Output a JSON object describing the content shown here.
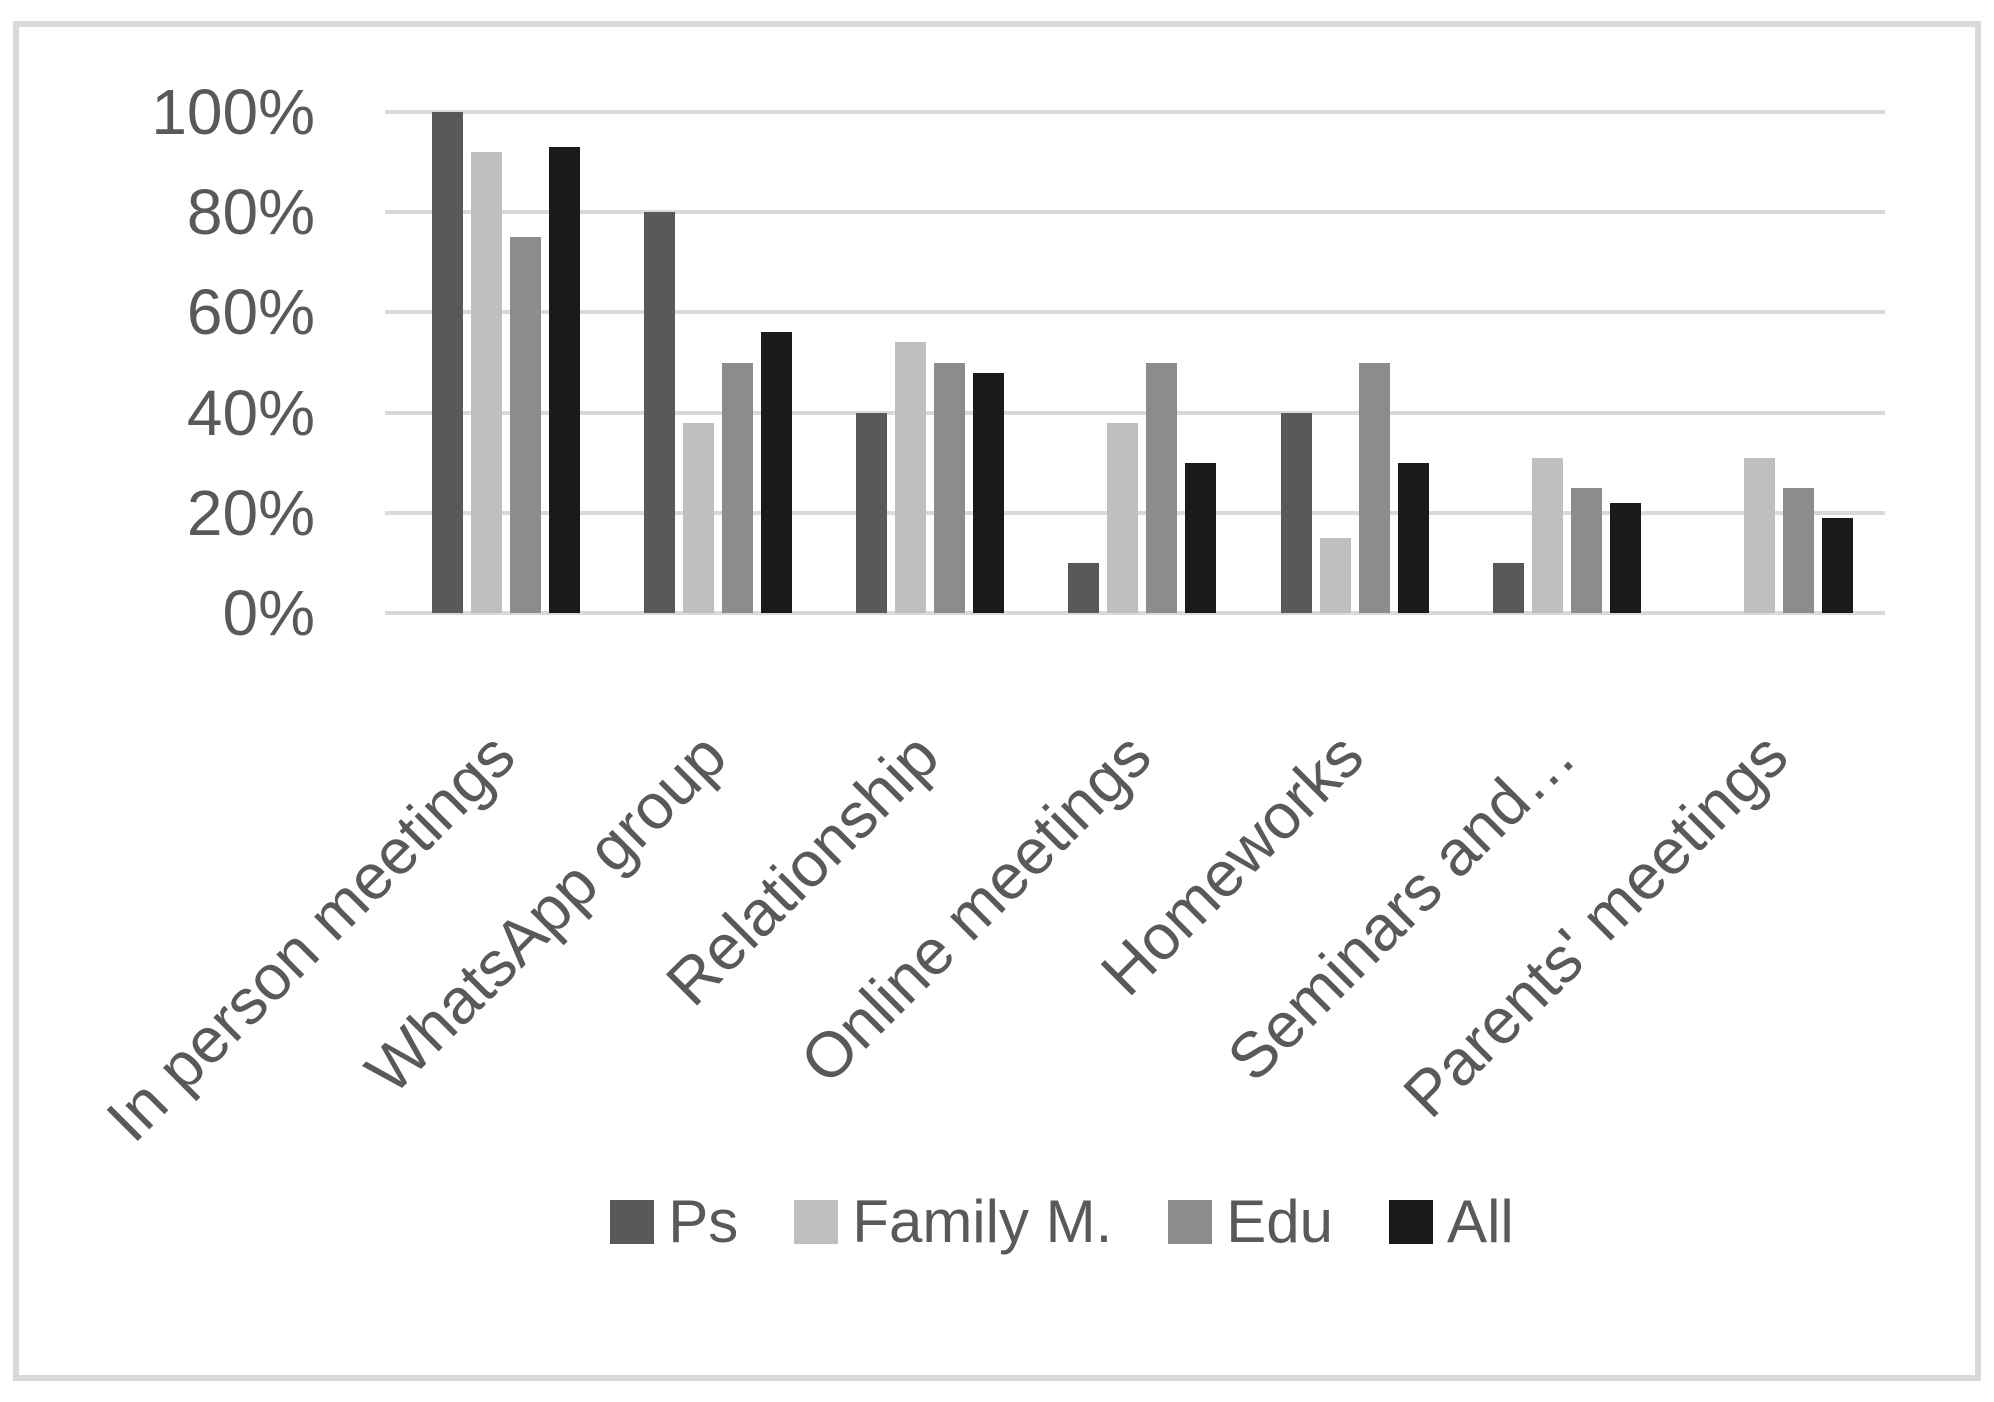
{
  "styles": {
    "gridline": "#d9d9d9",
    "axis_text": "#595959",
    "border": "#d9d9d9",
    "background": "#ffffff"
  },
  "chart_data": {
    "type": "bar",
    "title": "",
    "xlabel": "",
    "ylabel": "",
    "grid": true,
    "legend_position": "bottom",
    "categories": [
      "In person meetings",
      "WhatsApp group",
      "Relationship",
      "Online meetings",
      "Homeworks",
      "Seminars and…",
      "Parents' meetings"
    ],
    "series": [
      {
        "name": "Ps",
        "color": "#595959",
        "values": [
          100,
          80,
          40,
          10,
          40,
          10,
          0
        ]
      },
      {
        "name": "Family M.",
        "color": "#bfbfbf",
        "values": [
          92,
          38,
          54,
          38,
          15,
          31,
          31
        ]
      },
      {
        "name": "Edu",
        "color": "#8c8c8c",
        "values": [
          75,
          50,
          50,
          50,
          50,
          25,
          25
        ]
      },
      {
        "name": "All",
        "color": "#1a1a1a",
        "values": [
          93,
          56,
          48,
          30,
          30,
          22,
          19
        ]
      }
    ],
    "y_axis": {
      "min": 0,
      "max": 100,
      "unit": "%",
      "ticks": [
        "100%",
        "80%",
        "60%",
        "40%",
        "20%",
        "0%"
      ]
    }
  }
}
